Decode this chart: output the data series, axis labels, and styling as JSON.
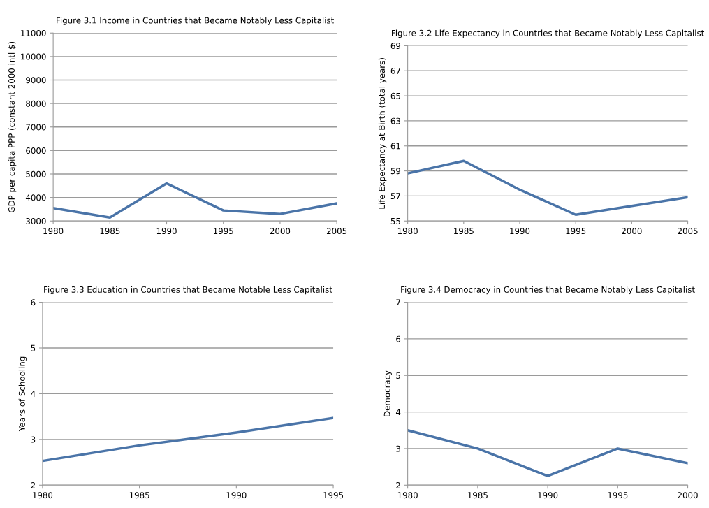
{
  "chart_data": [
    {
      "type": "line",
      "title": "Figure 3.1 Income in Countries that Became Notably Less Capitalist",
      "ylabel": "GDP per capita PPP (constant 2000 intl $)",
      "categories": [
        "1980",
        "1985",
        "1990",
        "1995",
        "2000",
        "2005"
      ],
      "series": [
        {
          "color": "#4a74a8",
          "values": [
            3550,
            3150,
            4600,
            3450,
            3300,
            3750
          ]
        }
      ],
      "ylim": [
        3000,
        11000
      ],
      "yticks": [
        3000,
        4000,
        5000,
        6000,
        7000,
        8000,
        9000,
        10000,
        11000
      ],
      "grid": "y",
      "legend": false
    },
    {
      "type": "line",
      "title": "Figure 3.2 Life Expectancy in Countries that Became Notably Less Capitalist",
      "ylabel": "Life Expectancy at Birth (total years)",
      "categories": [
        "1980",
        "1985",
        "1990",
        "1995",
        "2000",
        "2005"
      ],
      "series": [
        {
          "color": "#4a74a8",
          "values": [
            58.8,
            59.8,
            57.5,
            55.5,
            56.2,
            56.9
          ]
        }
      ],
      "ylim": [
        55,
        69
      ],
      "yticks": [
        55,
        57,
        59,
        61,
        63,
        65,
        67,
        69
      ],
      "grid": "y",
      "legend": false
    },
    {
      "type": "line",
      "title": "Figure 3.3 Education in Countries that Became Notable Less Capitalist",
      "ylabel": "Years of Schooling",
      "categories": [
        "1980",
        "1985",
        "1990",
        "1995"
      ],
      "series": [
        {
          "color": "#4a74a8",
          "values": [
            2.53,
            2.87,
            3.15,
            3.47
          ]
        }
      ],
      "ylim": [
        2,
        6
      ],
      "yticks": [
        2,
        3,
        4,
        5,
        6
      ],
      "grid": "y",
      "legend": false
    },
    {
      "type": "line",
      "title": "Figure 3.4 Democracy in Countries that Became Notably Less Capitalist",
      "ylabel": "Democracy",
      "categories": [
        "1980",
        "1985",
        "1990",
        "1995",
        "2000"
      ],
      "series": [
        {
          "color": "#4a74a8",
          "values": [
            3.5,
            3.0,
            2.25,
            3.0,
            2.6
          ]
        }
      ],
      "ylim": [
        2,
        7
      ],
      "yticks": [
        2,
        3,
        4,
        5,
        6,
        7
      ],
      "grid": "y",
      "legend": false
    }
  ]
}
